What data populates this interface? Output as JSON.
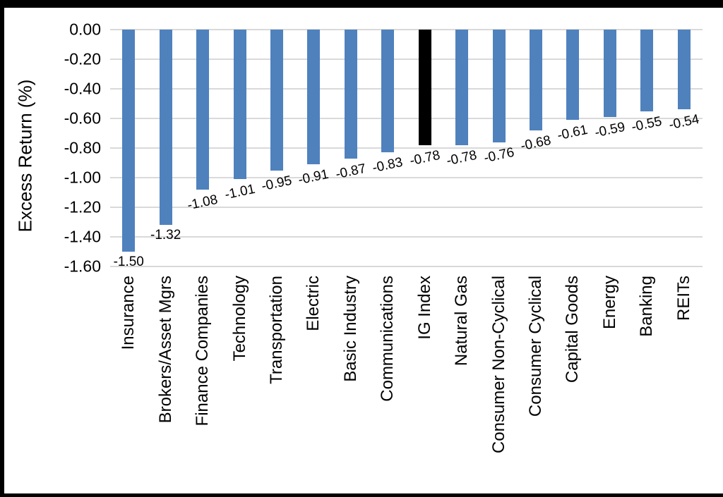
{
  "chart_data": {
    "type": "bar",
    "title": "",
    "ylabel": "Excess Return (%)",
    "xlabel": "",
    "ylim": [
      -1.6,
      0.0
    ],
    "ytick_step": 0.2,
    "ytick_labels": [
      "0.00",
      "-0.20",
      "-0.40",
      "-0.60",
      "-0.80",
      "-1.00",
      "-1.20",
      "-1.40",
      "-1.60"
    ],
    "grid": true,
    "legend_position": "none",
    "categories": [
      "Insurance",
      "Brokers/Asset Mgrs",
      "Finance Companies",
      "Technology",
      "Transportation",
      "Electric",
      "Basic Industry",
      "Communications",
      "IG Index",
      "Natural Gas",
      "Consumer Non-Cyclical",
      "Consumer Cyclical",
      "Capital Goods",
      "Energy",
      "Banking",
      "REITs"
    ],
    "values": [
      -1.5,
      -1.32,
      -1.08,
      -1.01,
      -0.95,
      -0.91,
      -0.87,
      -0.83,
      -0.78,
      -0.78,
      -0.76,
      -0.68,
      -0.61,
      -0.59,
      -0.55,
      -0.54
    ],
    "data_labels": [
      "-1.50",
      "-1.32",
      "-1.08",
      "-1.01",
      "-0.95",
      "-0.91",
      "-0.87",
      "-0.83",
      "-0.78",
      "-0.78",
      "-0.76",
      "-0.68",
      "-0.61",
      "-0.59",
      "-0.55",
      "-0.54"
    ],
    "highlight_category": "IG Index",
    "colors": {
      "bar_default": "#4f81bd",
      "bar_highlight": "#000000",
      "gridline": "#d9d9d9",
      "text": "#000000",
      "background": "#ffffff",
      "frame": "#000000"
    }
  }
}
